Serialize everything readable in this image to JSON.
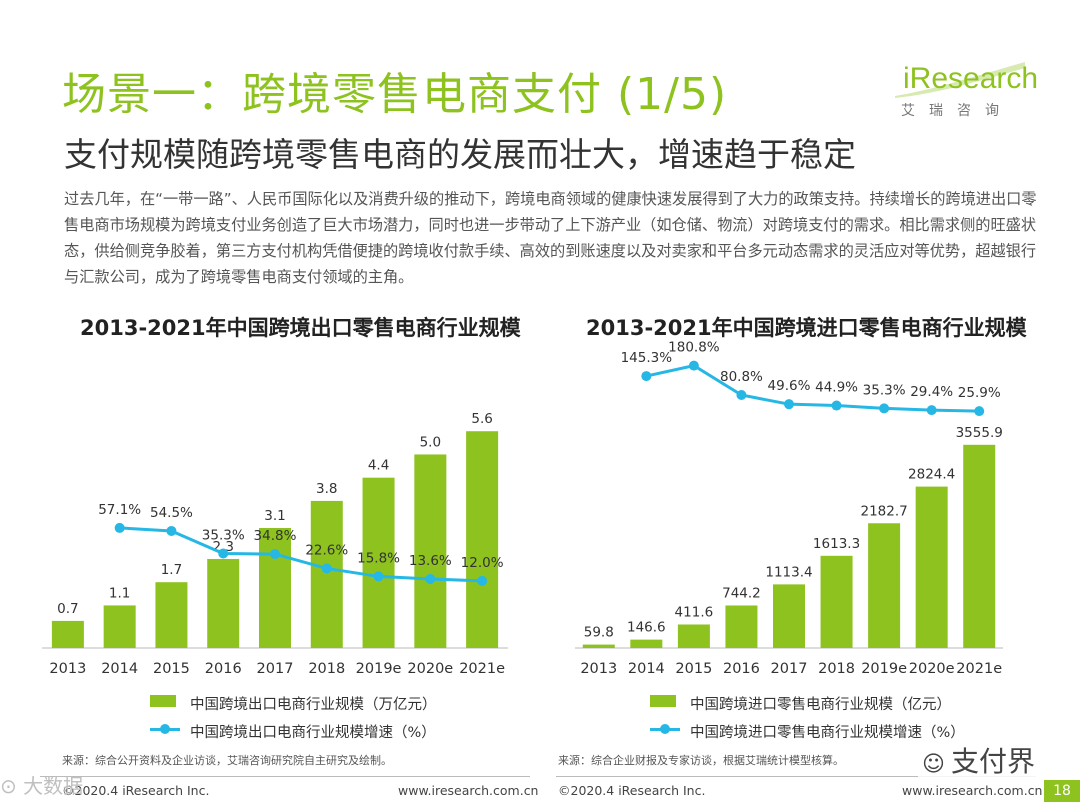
{
  "header": {
    "title": "场景一：跨境零售电商支付 (1/5)",
    "subtitle": "支付规模随跨境零售电商的发展而壮大，增速趋于稳定",
    "logo": "iResearch",
    "logo_sub": "艾瑞咨询"
  },
  "intro": "过去几年，在“一带一路”、人民币国际化以及消费升级的推动下，跨境电商领域的健康快速发展得到了大力的政策支持。持续增长的跨境进出口零售电商市场规模为跨境支付业务创造了巨大市场潜力，同时也进一步带动了上下游产业（如仓储、物流）对跨境支付的需求。相比需求侧的旺盛状态，供给侧竞争胶着，第三方支付机构凭借便捷的跨境收付款手续、高效的到账速度以及对卖家和平台多元动态需求的灵活应对等优势，超越银行与汇款公司，成为了跨境零售电商支付领域的主角。",
  "colors": {
    "accent": "#8dc21f",
    "bar": "#8dc21f",
    "line": "#26b7e5"
  },
  "chart_data": [
    {
      "type": "bar",
      "title": "2013-2021年中国跨境出口零售电商行业规模",
      "categories": [
        "2013",
        "2014",
        "2015",
        "2016",
        "2017",
        "2018",
        "2019e",
        "2020e",
        "2021e"
      ],
      "series": [
        {
          "name": "中国跨境出口电商行业规模（万亿元）",
          "type": "bar",
          "values": [
            0.7,
            1.1,
            1.7,
            2.3,
            3.1,
            3.8,
            4.4,
            5.0,
            5.6
          ],
          "labels": [
            "0.7",
            "1.1",
            "1.7",
            "2.3",
            "3.1",
            "3.8",
            "4.4",
            "5.0",
            "5.6"
          ]
        },
        {
          "name": "中国跨境出口电商行业规模增速（%）",
          "type": "line",
          "values": [
            null,
            57.1,
            54.5,
            35.3,
            34.8,
            22.6,
            15.8,
            13.6,
            12.0
          ],
          "labels": [
            "",
            "57.1%",
            "54.5%",
            "35.3%",
            "34.8%",
            "22.6%",
            "15.8%",
            "13.6%",
            "12.0%"
          ]
        }
      ],
      "ylim": [
        0,
        6.2
      ],
      "line_ylim": [
        0,
        200
      ],
      "grid": false,
      "legend_position": "bottom",
      "source": "来源：综合公开资料及企业访谈，艾瑞咨询研究院自主研究及绘制。"
    },
    {
      "type": "bar",
      "title": "2013-2021年中国跨境进口零售电商行业规模",
      "categories": [
        "2013",
        "2014",
        "2015",
        "2016",
        "2017",
        "2018",
        "2019e",
        "2020e",
        "2021e"
      ],
      "series": [
        {
          "name": "中国跨境进口零售电商行业规模（亿元）",
          "type": "bar",
          "values": [
            59.8,
            146.6,
            411.6,
            744.2,
            1113.4,
            1613.3,
            2182.7,
            2824.4,
            3555.9
          ],
          "labels": [
            "59.8",
            "146.6",
            "411.6",
            "744.2",
            "1113.4",
            "1613.3",
            "2182.7",
            "2824.4",
            "3555.9"
          ]
        },
        {
          "name": "中国跨境进口零售电商行业规模增速（%）",
          "type": "line",
          "values": [
            null,
            145.3,
            180.8,
            80.8,
            49.6,
            44.9,
            35.3,
            29.4,
            25.9
          ],
          "labels": [
            "",
            "145.3%",
            "180.8%",
            "80.8%",
            "49.6%",
            "44.9%",
            "35.3%",
            "29.4%",
            "25.9%"
          ]
        }
      ],
      "ylim": [
        0,
        4200
      ],
      "line_ylim": [
        -600,
        200
      ],
      "grid": false,
      "legend_position": "bottom",
      "source": "来源：综合企业财报及专家访谈，根据艾瑞统计模型核算。"
    }
  ],
  "footer": {
    "left_copyright": "©2020.4 iResearch Inc.",
    "left_url": "www.iresearch.com.cn",
    "right_copyright": "©2020.4 iResearch Inc.",
    "right_url": "www.iresearch.com.cn",
    "page_number": "18",
    "wechat": "支付界",
    "watermark": "大数据"
  }
}
